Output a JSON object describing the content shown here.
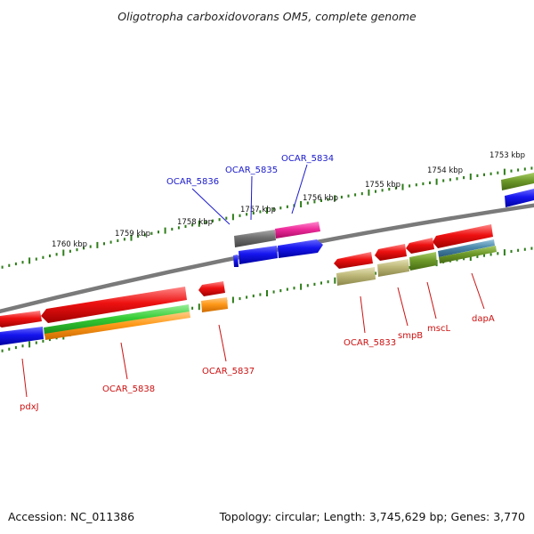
{
  "title": "Oligotropha carboxidovorans OM5, complete genome",
  "colors": {
    "backbone": "#808080",
    "tick": "#2e7d1a",
    "forward_label": "#1a1acc",
    "reverse_label": "#cc1111",
    "red": "#ee1111",
    "blue": "#1515ee",
    "gray": "#6e6e6e",
    "magenta": "#ee2a9a",
    "green": "#33cc33",
    "orange": "#ff9a1a",
    "khaki": "#bdb878",
    "olive": "#6e9a2a",
    "steel": "#4a88aa"
  },
  "kbp_labels": [
    "1753 kbp",
    "1754 kbp",
    "1755 kbp",
    "1756 kbp",
    "1757 kbp",
    "1758 kbp",
    "1759 kbp",
    "1760 kbp"
  ],
  "forward_genes": [
    "OCAR_5834",
    "OCAR_5835",
    "OCAR_5836"
  ],
  "reverse_genes": [
    "dapA",
    "mscL",
    "smpB",
    "OCAR_5833",
    "OCAR_5837",
    "OCAR_5838",
    "pdxJ"
  ],
  "footer": {
    "accession": "Accession: NC_011386",
    "stats": "Topology: circular; Length: 3,745,629 bp; Genes: 3,770"
  }
}
